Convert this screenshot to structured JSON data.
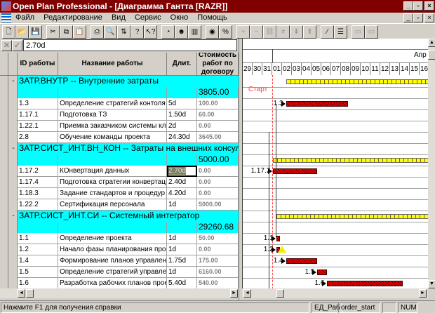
{
  "window": {
    "title": "Open Plan Professional - [Диаграмма Гантта [RAZR]]",
    "controls": [
      "_",
      "▫",
      "×"
    ],
    "child_controls": [
      "_",
      "▫",
      "×"
    ]
  },
  "menu": [
    "Файл",
    "Редактирование",
    "Вид",
    "Сервис",
    "Окно",
    "Помощь"
  ],
  "toolbar": [
    "new-icon",
    "open-icon",
    "save-icon",
    "cut-icon",
    "copy-icon",
    "paste-icon",
    "print-icon",
    "preview-icon",
    "sort-icon",
    "help-icon",
    "context-help-icon",
    "schedule-icon",
    "resource-icon",
    "chart-icon",
    "time-icon",
    "percent-icon",
    "add-icon",
    "remove-icon",
    "link-icon",
    "unlink-icon",
    "down-icon",
    "up-icon",
    "color-icon",
    "bars-icon",
    "zoom-in-icon",
    "zoom-out-icon"
  ],
  "editline": {
    "value": "2.70d",
    "cancel": "✕",
    "accept": "✓"
  },
  "grid": {
    "headers": [
      "ID работы",
      "Название работы",
      "Длит.",
      "Стоимость работ по договору"
    ],
    "rows": [
      {
        "type": "group",
        "collapse": "-",
        "text": "ЗАТР.ВНУТР -- Внутренние затраты"
      },
      {
        "type": "total",
        "cost": "3805.00"
      },
      {
        "id": "1.3",
        "name": "Определение стратегий контоля и отч",
        "dur": "5d",
        "cost": "100.00"
      },
      {
        "id": "1.17.1",
        "name": "Подготовка ТЗ",
        "dur": "1.50d",
        "cost": "60.00"
      },
      {
        "id": "1.22.1",
        "name": "Приемка заказчиком системы клиент",
        "dur": "2d",
        "cost": "0.00"
      },
      {
        "id": "2.8",
        "name": "Обучение команды проекта",
        "dur": "24.30d",
        "cost": "3645.00"
      },
      {
        "type": "group",
        "collapse": "-",
        "text": "ЗАТР.СИСТ_ИНТ.ВН_КОН -- Затраты на внешних консультантов"
      },
      {
        "type": "total",
        "cost": "5000.00"
      },
      {
        "id": "1.17.2",
        "name": "КОнвертация данных",
        "dur": "2.70d",
        "cost": "0.00",
        "selected": true
      },
      {
        "id": "1.17.4",
        "name": "Подготовка стратегии конвертации",
        "dur": "2.40d",
        "cost": "0.00"
      },
      {
        "id": "1.18.3",
        "name": "Задание стандартов  и процедур по д",
        "dur": "4.20d",
        "cost": "0.00"
      },
      {
        "id": "1.22.2",
        "name": "Сертификация персонала",
        "dur": "1d",
        "cost": "5000.00"
      },
      {
        "type": "group",
        "collapse": "-",
        "text": "ЗАТР.СИСТ_ИНТ.СИ -- Системный интегратор"
      },
      {
        "type": "total",
        "cost": "29260.68"
      },
      {
        "id": "1.1",
        "name": "Определение проекта",
        "dur": "1d",
        "cost": "50.00"
      },
      {
        "id": "1.2",
        "name": "Начало фазы планирования проекта",
        "dur": "1d",
        "cost": "0.00"
      },
      {
        "id": "1.4",
        "name": "Формирование планов управления",
        "dur": "1.75d",
        "cost": "175.00"
      },
      {
        "id": "1.5",
        "name": "Определение стратегий управления р",
        "dur": "1d",
        "cost": "6160.00"
      },
      {
        "id": "1.6",
        "name": "Разработка рабочих планов проекта",
        "dur": "5.40d",
        "cost": "540.00"
      }
    ]
  },
  "gantt": {
    "month": "Апр",
    "days": [
      "29",
      "30",
      "31",
      "01",
      "02",
      "03",
      "04",
      "05",
      "06",
      "07",
      "08",
      "09",
      "10",
      "11",
      "12",
      "13",
      "14",
      "15",
      "16"
    ],
    "start_label": "Старт",
    "start_day": 1,
    "colors": {
      "summary": "#ffff00",
      "task": "#e00000",
      "start_line": "#ff4040"
    },
    "bars": [
      {
        "row": 0,
        "type": "summary",
        "start": 2.4,
        "end": 17
      },
      {
        "row": 2,
        "type": "task",
        "start": 2.4,
        "end": 8.7,
        "label": "1.3"
      },
      {
        "row": 7,
        "type": "summary",
        "start": 1.1,
        "end": 17
      },
      {
        "row": 8,
        "type": "task",
        "start": 1.1,
        "end": 5.6,
        "label": "1.17.2"
      },
      {
        "row": 12,
        "type": "summary",
        "start": 1.4,
        "end": 17
      },
      {
        "row": 14,
        "type": "task",
        "start": 1.4,
        "end": 1.7,
        "label": "1.1"
      },
      {
        "row": 15,
        "type": "milestone",
        "start": 1.4,
        "end": 1.7,
        "label": "1.2"
      },
      {
        "row": 16,
        "type": "task",
        "start": 2.4,
        "end": 5.6,
        "label": "1.4"
      },
      {
        "row": 17,
        "type": "task",
        "start": 5.6,
        "end": 6.6,
        "label": "1.5"
      },
      {
        "row": 18,
        "type": "task",
        "start": 6.6,
        "end": 14.3,
        "label": "1.6"
      }
    ]
  },
  "status": {
    "help": "Нажмите F1 для получения справки",
    "fields": [
      "ЕД_Раб",
      "order_start",
      "",
      "NUM"
    ]
  }
}
